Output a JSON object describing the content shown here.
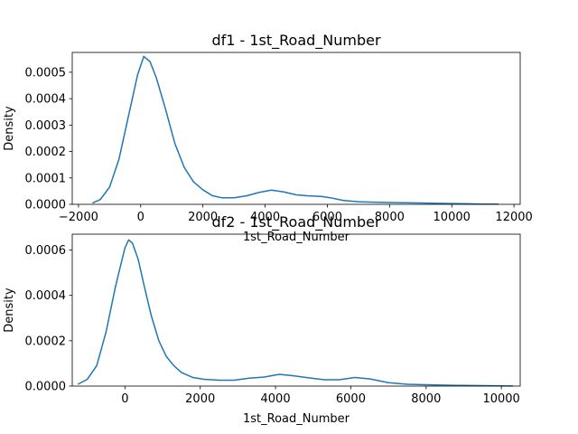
{
  "chart_data": [
    {
      "type": "line",
      "title": "df1 - 1st_Road_Number",
      "xlabel": "1st_Road_Number",
      "ylabel": "Density",
      "xlim": [
        -2200,
        12200
      ],
      "ylim": [
        0,
        0.000575
      ],
      "xticks": [
        -2000,
        0,
        2000,
        4000,
        6000,
        8000,
        10000,
        12000
      ],
      "xtick_labels": [
        "−2000",
        "0",
        "2000",
        "4000",
        "6000",
        "8000",
        "10000",
        "12000"
      ],
      "yticks": [
        0,
        0.0001,
        0.0002,
        0.0003,
        0.0004,
        0.0005
      ],
      "ytick_labels": [
        "0.0000",
        "0.0001",
        "0.0002",
        "0.0003",
        "0.0004",
        "0.0005"
      ],
      "series": [
        {
          "color": "#1f77b4",
          "x": [
            -1550,
            -1300,
            -1000,
            -700,
            -400,
            -100,
            100,
            300,
            500,
            800,
            1100,
            1400,
            1700,
            2000,
            2300,
            2600,
            3000,
            3400,
            3800,
            4200,
            4600,
            5000,
            5400,
            5800,
            6100,
            6500,
            7000,
            7500,
            8000,
            8500,
            9000,
            9500,
            10000,
            10500,
            11000,
            11500
          ],
          "y": [
            5e-06,
            1.8e-05,
            6.5e-05,
            0.00017,
            0.00033,
            0.00049,
            0.00056,
            0.00054,
            0.00048,
            0.00036,
            0.00023,
            0.00014,
            8.5e-05,
            5.5e-05,
            3.3e-05,
            2.5e-05,
            2.5e-05,
            3.2e-05,
            4.5e-05,
            5.4e-05,
            4.7e-05,
            3.6e-05,
            3.2e-05,
            3e-05,
            2.5e-05,
            1.5e-05,
            1e-05,
            8e-06,
            7e-06,
            6e-06,
            5e-06,
            4e-06,
            3e-06,
            2e-06,
            1e-06,
            1e-06
          ]
        }
      ]
    },
    {
      "type": "line",
      "title": "df2 - 1st_Road_Number",
      "xlabel": "1st_Road_Number",
      "ylabel": "Density",
      "xlim": [
        -1400,
        10500
      ],
      "ylim": [
        0,
        0.00067
      ],
      "xticks": [
        0,
        2000,
        4000,
        6000,
        8000,
        10000
      ],
      "xtick_labels": [
        "0",
        "2000",
        "4000",
        "6000",
        "8000",
        "10000"
      ],
      "yticks": [
        0,
        0.0002,
        0.0004,
        0.0006
      ],
      "ytick_labels": [
        "0.0000",
        "0.0002",
        "0.0004",
        "0.0006"
      ],
      "series": [
        {
          "color": "#1f77b4",
          "x": [
            -1250,
            -1000,
            -750,
            -500,
            -250,
            0,
            100,
            200,
            350,
            500,
            700,
            900,
            1100,
            1300,
            1500,
            1800,
            2100,
            2500,
            2900,
            3300,
            3700,
            4100,
            4500,
            4900,
            5300,
            5700,
            6100,
            6500,
            7000,
            7500,
            8000,
            8500,
            9000,
            9500,
            10000,
            10300
          ],
          "y": [
            8e-06,
            3e-05,
            9e-05,
            0.00024,
            0.00044,
            0.00061,
            0.000645,
            0.00063,
            0.00056,
            0.00045,
            0.00031,
            0.0002,
            0.00013,
            9e-05,
            6e-05,
            3.8e-05,
            3e-05,
            2.6e-05,
            2.6e-05,
            3.5e-05,
            4e-05,
            5.2e-05,
            4.5e-05,
            3.6e-05,
            2.8e-05,
            2.8e-05,
            3.8e-05,
            3.2e-05,
            1.5e-05,
            8e-06,
            6e-06,
            4e-06,
            3e-06,
            2e-06,
            1e-06,
            5e-07
          ]
        }
      ]
    }
  ]
}
